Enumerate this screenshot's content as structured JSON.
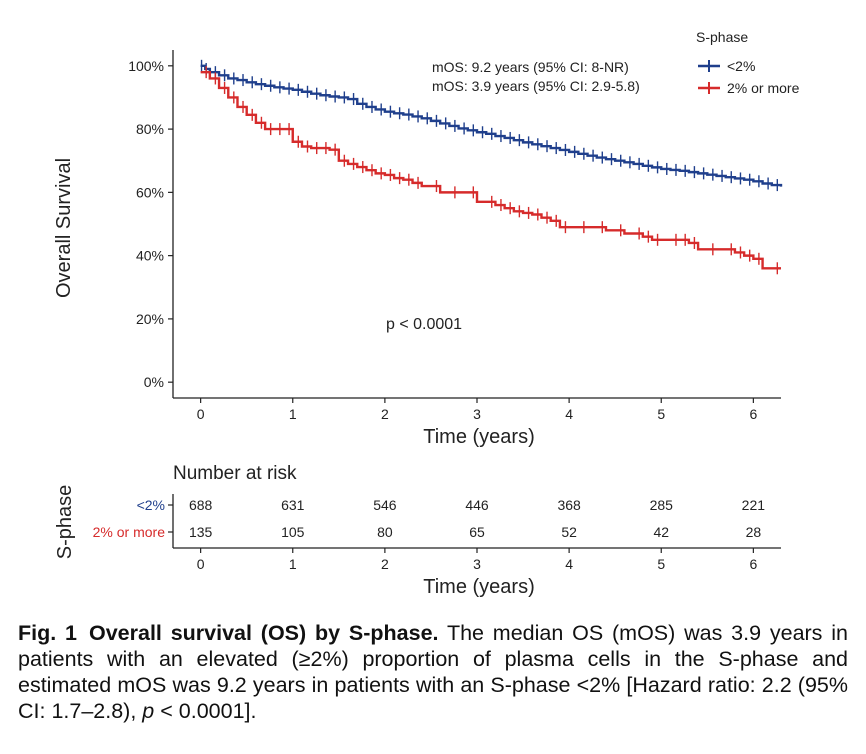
{
  "chart_data": {
    "type": "line",
    "subtype": "kaplan-meier",
    "ylabel": "Overall Survival",
    "xlabel": "Time (years)",
    "xlim": [
      -0.3,
      6.3
    ],
    "ylim": [
      -0.05,
      1.05
    ],
    "xticks": [
      0,
      1,
      2,
      3,
      4,
      5,
      6
    ],
    "yticks": [
      0,
      0.2,
      0.4,
      0.6,
      0.8,
      1.0
    ],
    "ytick_labels": [
      "0%",
      "20%",
      "40%",
      "60%",
      "80%",
      "100%"
    ],
    "grid": false,
    "legend": {
      "title": "S-phase",
      "position": "top-right"
    },
    "annotations": {
      "mos_1": "mOS: 9.2 years (95% CI: 8-NR)",
      "mos_2": "mOS: 3.9 years (95% CI: 2.9-5.8)",
      "pvalue": "p < 0.0001"
    },
    "series": [
      {
        "name": "<2%",
        "color": "#1f3f8c",
        "x": [
          0,
          0.05,
          0.1,
          0.2,
          0.3,
          0.4,
          0.5,
          0.6,
          0.7,
          0.8,
          0.9,
          1.0,
          1.1,
          1.2,
          1.3,
          1.4,
          1.5,
          1.6,
          1.7,
          1.8,
          1.9,
          2.0,
          2.1,
          2.2,
          2.3,
          2.4,
          2.5,
          2.6,
          2.7,
          2.8,
          2.9,
          3.0,
          3.1,
          3.2,
          3.3,
          3.4,
          3.5,
          3.6,
          3.7,
          3.8,
          3.9,
          4.0,
          4.1,
          4.2,
          4.3,
          4.4,
          4.5,
          4.6,
          4.7,
          4.8,
          4.9,
          5.0,
          5.1,
          5.2,
          5.3,
          5.4,
          5.5,
          5.6,
          5.7,
          5.8,
          5.9,
          6.0,
          6.1,
          6.2,
          6.3
        ],
        "y": [
          1.0,
          0.99,
          0.98,
          0.97,
          0.96,
          0.955,
          0.948,
          0.942,
          0.937,
          0.932,
          0.928,
          0.924,
          0.918,
          0.912,
          0.907,
          0.903,
          0.9,
          0.895,
          0.88,
          0.87,
          0.862,
          0.855,
          0.85,
          0.846,
          0.84,
          0.834,
          0.826,
          0.818,
          0.81,
          0.802,
          0.796,
          0.79,
          0.785,
          0.778,
          0.772,
          0.765,
          0.758,
          0.752,
          0.746,
          0.74,
          0.734,
          0.728,
          0.722,
          0.716,
          0.71,
          0.705,
          0.7,
          0.695,
          0.69,
          0.684,
          0.679,
          0.674,
          0.671,
          0.668,
          0.664,
          0.66,
          0.656,
          0.652,
          0.648,
          0.644,
          0.64,
          0.635,
          0.628,
          0.623,
          0.618
        ]
      },
      {
        "name": "2% or more",
        "color": "#d62b2b",
        "x": [
          0,
          0.1,
          0.2,
          0.3,
          0.4,
          0.5,
          0.6,
          0.7,
          0.8,
          0.9,
          1.0,
          1.1,
          1.2,
          1.3,
          1.4,
          1.5,
          1.6,
          1.7,
          1.8,
          1.9,
          2.0,
          2.1,
          2.2,
          2.3,
          2.4,
          2.6,
          2.8,
          3.0,
          3.2,
          3.3,
          3.4,
          3.5,
          3.6,
          3.7,
          3.8,
          3.9,
          4.0,
          4.2,
          4.4,
          4.6,
          4.8,
          4.9,
          5.0,
          5.2,
          5.3,
          5.4,
          5.6,
          5.8,
          5.9,
          6.0,
          6.1,
          6.3
        ],
        "y": [
          0.98,
          0.96,
          0.93,
          0.9,
          0.87,
          0.845,
          0.82,
          0.8,
          0.8,
          0.8,
          0.76,
          0.745,
          0.74,
          0.74,
          0.735,
          0.7,
          0.69,
          0.68,
          0.67,
          0.66,
          0.655,
          0.645,
          0.64,
          0.63,
          0.62,
          0.6,
          0.6,
          0.57,
          0.56,
          0.55,
          0.54,
          0.535,
          0.53,
          0.52,
          0.51,
          0.49,
          0.49,
          0.49,
          0.48,
          0.47,
          0.46,
          0.45,
          0.45,
          0.45,
          0.44,
          0.42,
          0.42,
          0.41,
          0.4,
          0.39,
          0.36,
          0.36
        ]
      }
    ],
    "risk_table": {
      "title": "Number at risk",
      "ylabel": "S-phase",
      "xlabel": "Time (years)",
      "times": [
        0,
        1,
        2,
        3,
        4,
        5,
        6
      ],
      "rows": [
        {
          "label": "<2%",
          "color": "#1f3f8c",
          "values": [
            "688",
            "631",
            "546",
            "446",
            "368",
            "285",
            "221"
          ]
        },
        {
          "label": "2% or more",
          "color": "#d62b2b",
          "values": [
            "135",
            "105",
            "80",
            "65",
            "52",
            "42",
            "28"
          ]
        }
      ]
    }
  },
  "caption": {
    "label": "Fig. 1",
    "title": "Overall survival (OS) by S-phase.",
    "body_1": " The median OS (mOS) was 3.9 years in patients with an elevated (≥2%) proportion of plasma cells in the S-phase and estimated mOS was 9.2 years in patients with an S-phase <2% [Hazard ratio: 2.2 (95% CI: 1.7–2.8), ",
    "p_italic": "p",
    "body_2": " < 0.0001]."
  }
}
